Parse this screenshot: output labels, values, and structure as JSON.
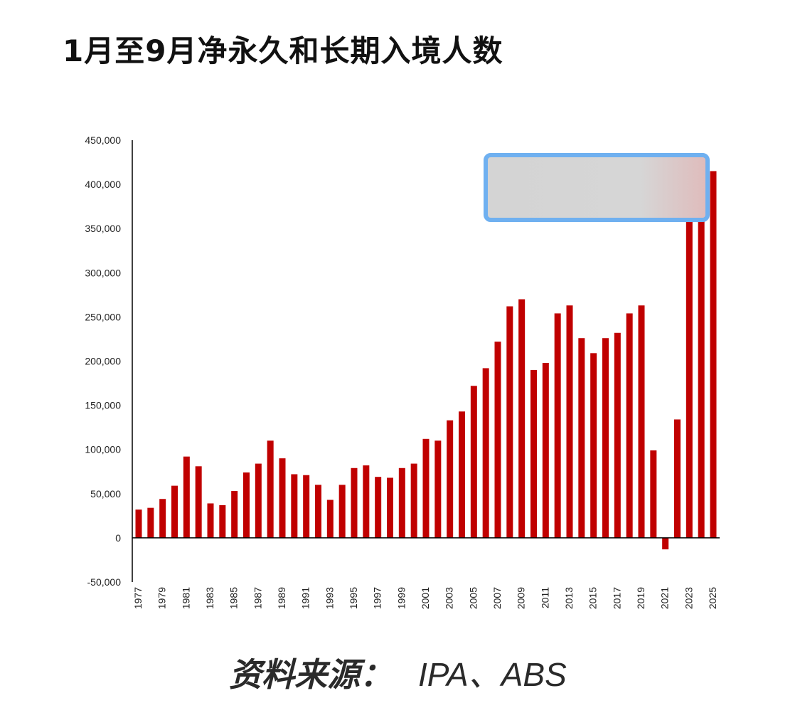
{
  "title": "1月至9月净永久和长期入境人数",
  "source_label": "资料来源：",
  "source_value": "IPA、ABS",
  "watermark_text": "",
  "colors": {
    "bar": "#c00000",
    "axis": "#000000",
    "overlay_border": "#6fb0f0"
  },
  "chart_data": {
    "type": "bar",
    "title": "1月至9月净永久和长期入境人数",
    "xlabel": "",
    "ylabel": "",
    "ylim": [
      -50000,
      450000
    ],
    "yticks": [
      450000,
      400000,
      350000,
      300000,
      250000,
      200000,
      150000,
      100000,
      50000,
      0,
      -50000
    ],
    "ytick_labels": [
      "450,000",
      "400,000",
      "350,000",
      "300,000",
      "250,000",
      "200,000",
      "150,000",
      "100,000",
      "50,000",
      "0",
      "-50,000"
    ],
    "xtick_labels": [
      "1977",
      "1979",
      "1981",
      "1983",
      "1985",
      "1987",
      "1989",
      "1991",
      "1993",
      "1995",
      "1997",
      "1999",
      "2001",
      "2003",
      "2005",
      "2007",
      "2009",
      "2011",
      "2013",
      "2015",
      "2017",
      "2019",
      "2021",
      "2023",
      "2025"
    ],
    "categories": [
      "1977",
      "1978",
      "1979",
      "1980",
      "1981",
      "1982",
      "1983",
      "1984",
      "1985",
      "1986",
      "1987",
      "1988",
      "1989",
      "1990",
      "1991",
      "1992",
      "1993",
      "1994",
      "1995",
      "1996",
      "1997",
      "1998",
      "1999",
      "2000",
      "2001",
      "2002",
      "2003",
      "2004",
      "2005",
      "2006",
      "2007",
      "2008",
      "2009",
      "2010",
      "2011",
      "2012",
      "2013",
      "2014",
      "2015",
      "2016",
      "2017",
      "2018",
      "2019",
      "2020",
      "2021",
      "2022",
      "2023",
      "2024",
      "2025"
    ],
    "values": [
      32000,
      34000,
      44000,
      59000,
      92000,
      81000,
      39000,
      37000,
      53000,
      74000,
      84000,
      110000,
      90000,
      72000,
      71000,
      60000,
      43000,
      60000,
      79000,
      82000,
      69000,
      68000,
      79000,
      84000,
      112000,
      110000,
      133000,
      143000,
      172000,
      192000,
      222000,
      262000,
      270000,
      190000,
      198000,
      254000,
      263000,
      226000,
      209000,
      226000,
      232000,
      254000,
      263000,
      99000,
      -13000,
      134000,
      370000,
      393000,
      415000
    ],
    "grid": false
  }
}
